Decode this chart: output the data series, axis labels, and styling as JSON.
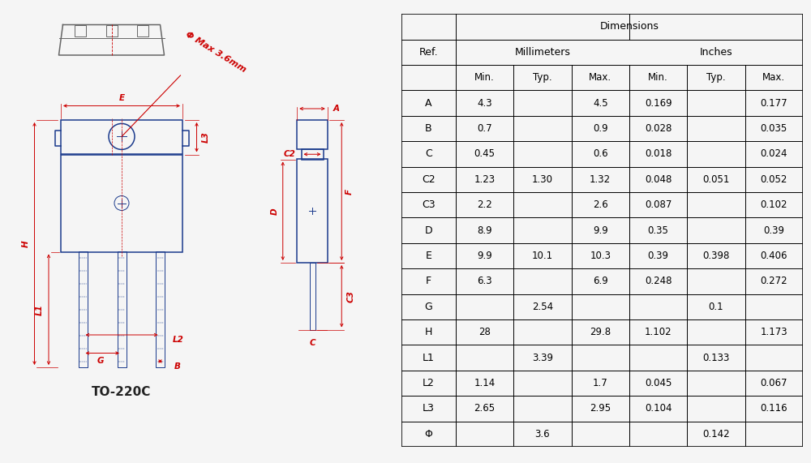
{
  "background_color": "#f5f5f5",
  "diagram_color": "#1a3a8c",
  "dim_color": "#cc0000",
  "title_text": "TO-220C",
  "table_data": [
    [
      "A",
      "4.3",
      "",
      "4.5",
      "0.169",
      "",
      "0.177"
    ],
    [
      "B",
      "0.7",
      "",
      "0.9",
      "0.028",
      "",
      "0.035"
    ],
    [
      "C",
      "0.45",
      "",
      "0.6",
      "0.018",
      "",
      "0.024"
    ],
    [
      "C2",
      "1.23",
      "1.30",
      "1.32",
      "0.048",
      "0.051",
      "0.052"
    ],
    [
      "C3",
      "2.2",
      "",
      "2.6",
      "0.087",
      "",
      "0.102"
    ],
    [
      "D",
      "8.9",
      "",
      "9.9",
      "0.35",
      "",
      "0.39"
    ],
    [
      "E",
      "9.9",
      "10.1",
      "10.3",
      "0.39",
      "0.398",
      "0.406"
    ],
    [
      "F",
      "6.3",
      "",
      "6.9",
      "0.248",
      "",
      "0.272"
    ],
    [
      "G",
      "",
      "2.54",
      "",
      "",
      "0.1",
      ""
    ],
    [
      "H",
      "28",
      "",
      "29.8",
      "1.102",
      "",
      "1.173"
    ],
    [
      "L1",
      "",
      "3.39",
      "",
      "",
      "0.133",
      ""
    ],
    [
      "L2",
      "1.14",
      "",
      "1.7",
      "0.045",
      "",
      "0.067"
    ],
    [
      "L3",
      "2.65",
      "",
      "2.95",
      "0.104",
      "",
      "0.116"
    ],
    [
      "Φ",
      "",
      "3.6",
      "",
      "",
      "0.142",
      ""
    ]
  ]
}
